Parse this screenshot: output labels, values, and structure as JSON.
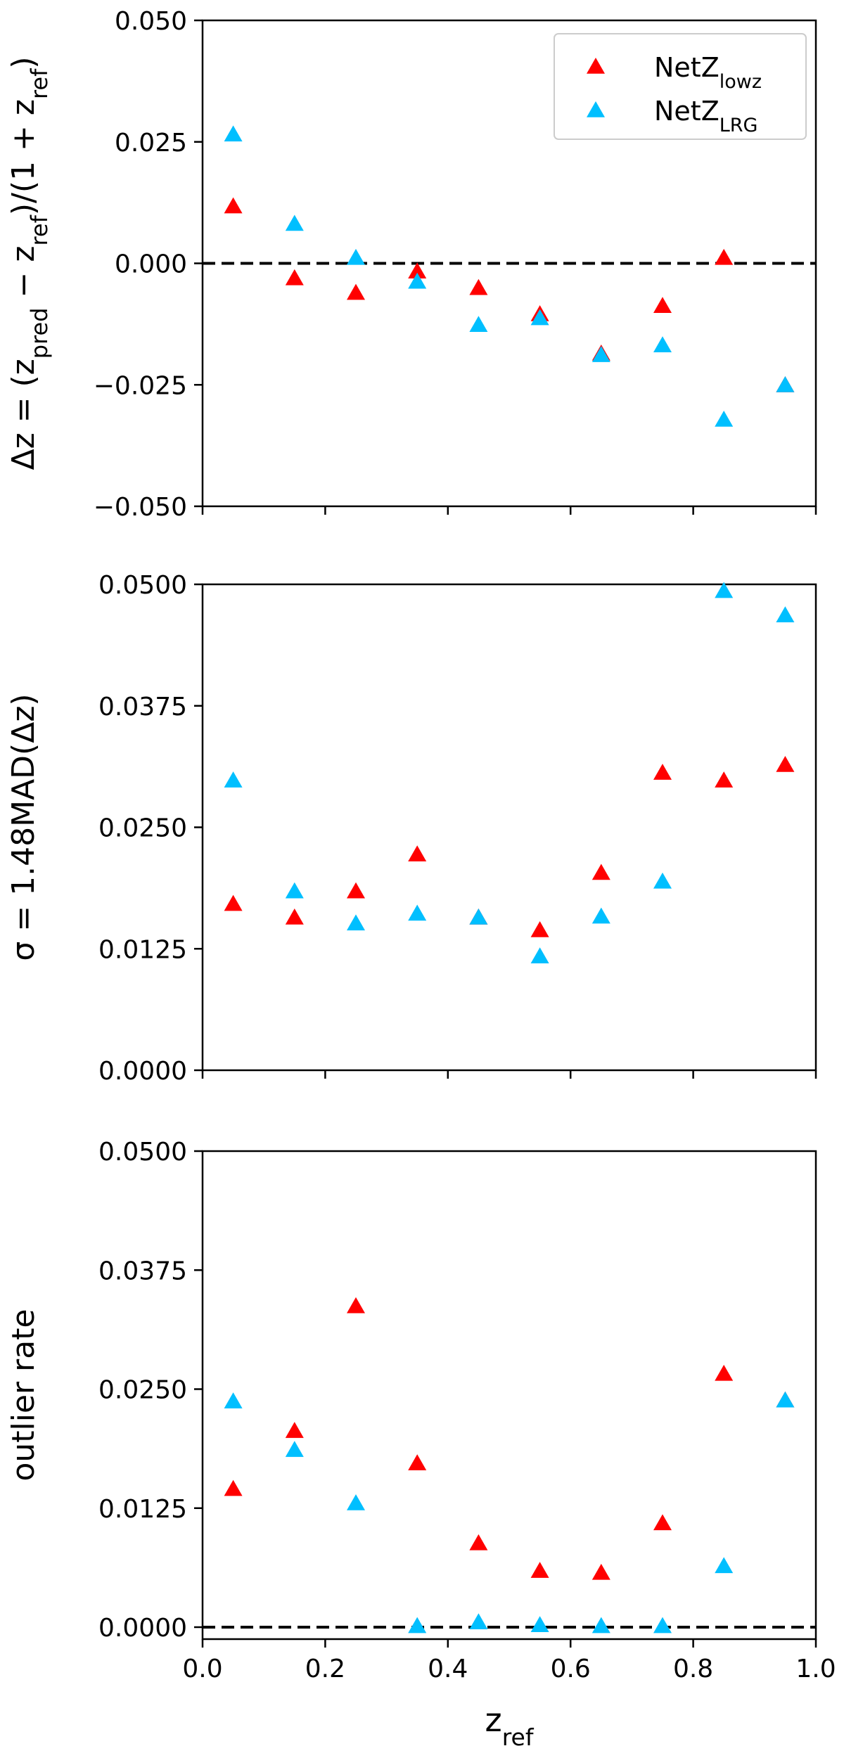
{
  "chart_data": [
    {
      "type": "scatter",
      "x": [
        0.05,
        0.15,
        0.25,
        0.35,
        0.45,
        0.55,
        0.65,
        0.75,
        0.85,
        0.95
      ],
      "xlim": [
        0.0,
        1.0
      ],
      "ylim": [
        -0.05,
        0.05
      ],
      "yticks": [
        "0.050",
        "0.025",
        "0.000",
        "−0.025",
        "−0.050"
      ],
      "ytick_values": [
        0.05,
        0.025,
        0.0,
        -0.025,
        -0.05
      ],
      "ylabel": {
        "pre": "Δz = (z",
        "sub1": "pred",
        "mid": " − z",
        "sub2": "ref",
        "mid2": ")/(1 + z",
        "sub3": "ref",
        "post": ")"
      },
      "reference_line": 0.0,
      "legend": {
        "placement": "top-right"
      },
      "series": [
        {
          "name": "NetZ",
          "sub": "lowz",
          "color": "#ff0000",
          "values": [
            0.0117,
            -0.0031,
            -0.0061,
            -0.0017,
            -0.0051,
            -0.0105,
            -0.0186,
            -0.0088,
            0.0011,
            -0.0251
          ]
        },
        {
          "name": "NetZ",
          "sub": "LRG",
          "color": "#00bfff",
          "values": [
            0.0265,
            0.0081,
            0.0011,
            -0.0038,
            -0.0127,
            -0.0113,
            -0.0189,
            -0.0169,
            -0.0322,
            -0.0251
          ]
        }
      ]
    },
    {
      "type": "scatter",
      "x": [
        0.05,
        0.15,
        0.25,
        0.35,
        0.45,
        0.55,
        0.65,
        0.75,
        0.85,
        0.95
      ],
      "xlim": [
        0.0,
        1.0
      ],
      "ylim": [
        0.0,
        0.05
      ],
      "yticks": [
        "0.0500",
        "0.0375",
        "0.0250",
        "0.0125",
        "0.0000"
      ],
      "ytick_values": [
        0.05,
        0.0375,
        0.025,
        0.0125,
        0.0
      ],
      "ylabel": {
        "pre": "σ = 1.48MAD(Δz)"
      },
      "series": [
        {
          "name": "NetZ",
          "sub": "lowz",
          "color": "#ff0000",
          "values": [
            0.0171,
            0.0157,
            0.0184,
            0.0222,
            0.0157,
            0.0144,
            0.0203,
            0.0306,
            0.0298,
            0.0314
          ]
        },
        {
          "name": "NetZ",
          "sub": "LRG",
          "color": "#00bfff",
          "values": [
            0.0298,
            0.0184,
            0.0151,
            0.0161,
            0.0157,
            0.0117,
            0.0158,
            0.0194,
            0.0493,
            0.0468
          ]
        }
      ]
    },
    {
      "type": "scatter",
      "x": [
        0.05,
        0.15,
        0.25,
        0.35,
        0.45,
        0.55,
        0.65,
        0.75,
        0.85,
        0.95
      ],
      "xlim": [
        0.0,
        1.0
      ],
      "ylim": [
        -0.001,
        0.05
      ],
      "yticks": [
        "0.0500",
        "0.0375",
        "0.0250",
        "0.0125",
        "0.0000"
      ],
      "ytick_values": [
        0.05,
        0.0375,
        0.025,
        0.0125,
        0.0
      ],
      "xticks": [
        "0.0",
        "0.2",
        "0.4",
        "0.6",
        "0.8",
        "1.0"
      ],
      "xtick_values": [
        0.0,
        0.2,
        0.4,
        0.6,
        0.8,
        1.0
      ],
      "ylabel": {
        "pre": "outlier rate"
      },
      "xlabel": {
        "pre": "z",
        "sub1": "ref"
      },
      "reference_line": 0.0,
      "series": [
        {
          "name": "NetZ",
          "sub": "lowz",
          "color": "#ff0000",
          "values": [
            0.0145,
            0.0206,
            0.0337,
            0.0172,
            0.0088,
            0.0059,
            0.0057,
            0.0109,
            0.0266,
            0.0238
          ]
        },
        {
          "name": "NetZ",
          "sub": "LRG",
          "color": "#00bfff",
          "values": [
            0.0237,
            0.0186,
            0.013,
            0.0001,
            0.0005,
            0.0002,
            0.0001,
            0.0001,
            0.0064,
            0.0238
          ]
        }
      ]
    }
  ]
}
